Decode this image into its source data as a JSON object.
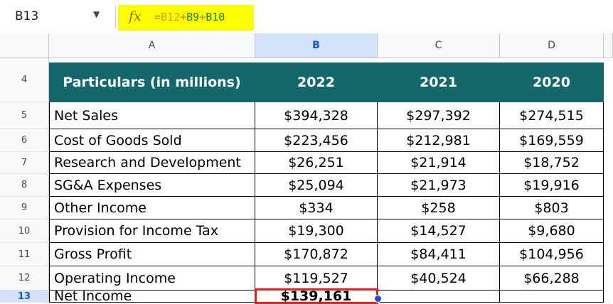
{
  "formula_bar": {
    "cell_ref": "B13",
    "fx_icon": "fx-icon",
    "formula_parts": [
      {
        "text": "=",
        "color": "#c9780a"
      },
      {
        "text": "B12",
        "color": "#e69a1d"
      },
      {
        "text": "+",
        "color": "#c9780a"
      },
      {
        "text": "B9",
        "color": "#1f7a34"
      },
      {
        "text": "+",
        "color": "#c9780a"
      },
      {
        "text": "B10",
        "color": "#1f7a34"
      }
    ],
    "highlight_color": "#ffff00"
  },
  "columns": [
    "A",
    "B",
    "C",
    "D"
  ],
  "selected_column": "B",
  "selected_row": "13",
  "table": {
    "header_row": "4",
    "headers": [
      "Particulars (in millions)",
      "2022",
      "2021",
      "2020"
    ],
    "header_color": "#14676b",
    "rows": [
      {
        "row": "5",
        "label": "Net Sales",
        "values": [
          "$394,328",
          "$297,392",
          "$274,515"
        ]
      },
      {
        "row": "6",
        "label": "Cost of Goods Sold",
        "values": [
          "$223,456",
          "$212,981",
          "$169,559"
        ]
      },
      {
        "row": "7",
        "label": "Research and Development",
        "values": [
          "$26,251",
          "$21,914",
          "$18,752"
        ]
      },
      {
        "row": "8",
        "label": "SG&A Expenses",
        "values": [
          "$25,094",
          "$21,973",
          "$19,916"
        ]
      },
      {
        "row": "9",
        "label": "Other Income",
        "values": [
          "$334",
          "$258",
          "$803"
        ]
      },
      {
        "row": "10",
        "label": "Provision for Income Tax",
        "values": [
          "$19,300",
          "$14,527",
          "$9,680"
        ]
      },
      {
        "row": "11",
        "label": "Gross Profit",
        "values": [
          "$170,872",
          "$84,411",
          "$104,956"
        ]
      },
      {
        "row": "12",
        "label": "Operating Income",
        "values": [
          "$119,527",
          "$40,524",
          "$66,288"
        ]
      },
      {
        "row": "13",
        "label": "Net Income",
        "values": [
          "$139,161",
          "",
          ""
        ]
      }
    ]
  },
  "selection_color": "#e02020"
}
